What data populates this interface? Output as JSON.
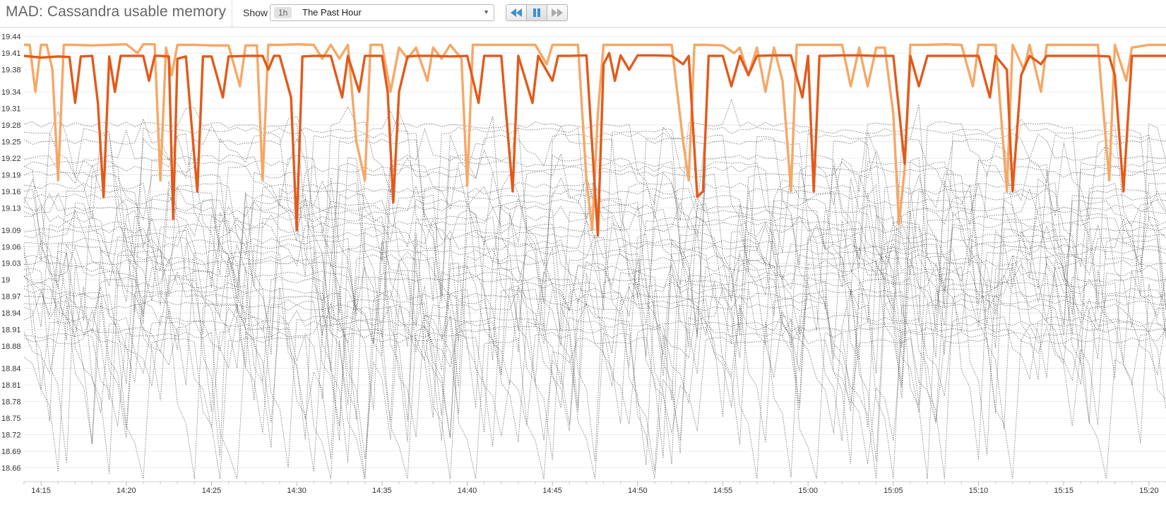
{
  "header": {
    "title": "MAD: Cassandra usable memory",
    "show_label": "Show",
    "time_badge": "1h",
    "time_range": "The Past Hour"
  },
  "controls": {
    "rewind_icon": "rewind-icon",
    "pause_icon": "pause-icon",
    "fast_forward_icon": "fast-forward-icon",
    "accent_color": "#3a8fd0"
  },
  "chart_data": {
    "type": "line",
    "title": "",
    "xlabel": "",
    "ylabel": "",
    "ylim": [
      18.635,
      19.455
    ],
    "y_ticks": [
      "19.44",
      "19.41",
      "19.38",
      "19.34",
      "19.31",
      "19.28",
      "19.25",
      "19.22",
      "19.19",
      "19.16",
      "19.13",
      "19.09",
      "19.06",
      "19.03",
      "19",
      "18.97",
      "18.94",
      "18.91",
      "18.88",
      "18.84",
      "18.81",
      "18.78",
      "18.75",
      "18.72",
      "18.69",
      "18.66"
    ],
    "x_ticks": [
      "14:15",
      "14:20",
      "14:25",
      "14:30",
      "14:35",
      "14:40",
      "14:45",
      "14:50",
      "14:55",
      "15:00",
      "15:05",
      "15:10",
      "15:15",
      "15:20"
    ],
    "x_range": [
      "14:14",
      "15:21"
    ],
    "grid": "horizontal",
    "legend": "none",
    "highlighted_series": [
      {
        "color": "#e35a1a",
        "stroke": "solid",
        "points": [
          [
            "14:14",
            19.405
          ],
          [
            "14:15",
            19.402
          ],
          [
            "14:16",
            19.404
          ],
          [
            "14:16:40",
            19.403
          ],
          [
            "14:17",
            19.32
          ],
          [
            "14:17:20",
            19.404
          ],
          [
            "14:18",
            19.405
          ],
          [
            "14:18:20",
            19.32
          ],
          [
            "14:18:40",
            19.15
          ],
          [
            "14:19",
            19.404
          ],
          [
            "14:19:20",
            19.34
          ],
          [
            "14:19:40",
            19.405
          ],
          [
            "14:20",
            19.405
          ],
          [
            "14:21",
            19.405
          ],
          [
            "14:21:20",
            19.36
          ],
          [
            "14:21:40",
            19.405
          ],
          [
            "14:22",
            19.405
          ],
          [
            "14:22:30",
            19.404
          ],
          [
            "14:22:45",
            19.11
          ],
          [
            "14:23",
            19.4
          ],
          [
            "14:23:30",
            19.404
          ],
          [
            "14:23:50",
            19.28
          ],
          [
            "14:24:10",
            19.16
          ],
          [
            "14:24:30",
            19.404
          ],
          [
            "14:25",
            19.404
          ],
          [
            "14:25:40",
            19.33
          ],
          [
            "14:26",
            19.404
          ],
          [
            "14:27",
            19.405
          ],
          [
            "14:28",
            19.405
          ],
          [
            "14:28:20",
            19.38
          ],
          [
            "14:28:40",
            19.405
          ],
          [
            "14:29",
            19.405
          ],
          [
            "14:29:40",
            19.33
          ],
          [
            "14:30",
            19.09
          ],
          [
            "14:30:20",
            19.404
          ],
          [
            "14:31",
            19.405
          ],
          [
            "14:32",
            19.405
          ],
          [
            "14:32:40",
            19.33
          ],
          [
            "14:33",
            19.405
          ],
          [
            "14:33:40",
            19.34
          ],
          [
            "14:34",
            19.405
          ],
          [
            "14:35",
            19.405
          ],
          [
            "14:35:20",
            19.34
          ],
          [
            "14:35:40",
            19.14
          ],
          [
            "14:36",
            19.34
          ],
          [
            "14:36:30",
            19.404
          ],
          [
            "14:37",
            19.405
          ],
          [
            "14:38",
            19.405
          ],
          [
            "14:39",
            19.404
          ],
          [
            "14:40",
            19.405
          ],
          [
            "14:40:40",
            19.32
          ],
          [
            "14:41",
            19.405
          ],
          [
            "14:42",
            19.405
          ],
          [
            "14:42:40",
            19.16
          ],
          [
            "14:43",
            19.405
          ],
          [
            "14:43:50",
            19.32
          ],
          [
            "14:44:10",
            19.405
          ],
          [
            "14:45",
            19.36
          ],
          [
            "14:45:20",
            19.405
          ],
          [
            "14:46",
            19.405
          ],
          [
            "14:47",
            19.406
          ],
          [
            "14:47:40",
            19.08
          ],
          [
            "14:48",
            19.39
          ],
          [
            "14:48:20",
            19.41
          ],
          [
            "14:48:40",
            19.36
          ],
          [
            "14:49",
            19.406
          ],
          [
            "14:49:30",
            19.38
          ],
          [
            "14:50",
            19.406
          ],
          [
            "14:51",
            19.406
          ],
          [
            "14:52",
            19.405
          ],
          [
            "14:52:40",
            19.39
          ],
          [
            "14:53",
            19.405
          ],
          [
            "14:53:30",
            19.15
          ],
          [
            "14:53:50",
            19.16
          ],
          [
            "14:54:10",
            19.405
          ],
          [
            "14:55",
            19.405
          ],
          [
            "14:55:30",
            19.35
          ],
          [
            "14:56",
            19.405
          ],
          [
            "14:56:30",
            19.37
          ],
          [
            "14:57",
            19.405
          ],
          [
            "14:58",
            19.406
          ],
          [
            "14:59",
            19.406
          ],
          [
            "14:59:40",
            19.33
          ],
          [
            "15:00",
            19.405
          ],
          [
            "15:00:20",
            19.16
          ],
          [
            "15:00:40",
            19.405
          ],
          [
            "15:01",
            19.405
          ],
          [
            "15:02",
            19.406
          ],
          [
            "15:03",
            19.406
          ],
          [
            "15:04",
            19.405
          ],
          [
            "15:05",
            19.405
          ],
          [
            "15:05:40",
            19.21
          ],
          [
            "15:06",
            19.405
          ],
          [
            "15:06:30",
            19.35
          ],
          [
            "15:07",
            19.405
          ],
          [
            "15:08",
            19.405
          ],
          [
            "15:09",
            19.405
          ],
          [
            "15:10",
            19.405
          ],
          [
            "15:10:40",
            19.33
          ],
          [
            "15:11",
            19.405
          ],
          [
            "15:11:40",
            19.38
          ],
          [
            "15:12",
            19.16
          ],
          [
            "15:12:30",
            19.37
          ],
          [
            "15:13",
            19.405
          ],
          [
            "15:13:40",
            19.39
          ],
          [
            "15:14",
            19.405
          ],
          [
            "15:15",
            19.405
          ],
          [
            "15:16",
            19.405
          ],
          [
            "15:17",
            19.405
          ],
          [
            "15:17:40",
            19.404
          ],
          [
            "15:18",
            19.37
          ],
          [
            "15:18:30",
            19.16
          ],
          [
            "15:19",
            19.405
          ],
          [
            "15:20",
            19.405
          ],
          [
            "15:21",
            19.405
          ]
        ]
      },
      {
        "color": "#f5a866",
        "stroke": "solid",
        "points": [
          [
            "14:14",
            19.425
          ],
          [
            "14:14:20",
            19.425
          ],
          [
            "14:14:40",
            19.34
          ],
          [
            "14:15",
            19.425
          ],
          [
            "14:15:20",
            19.425
          ],
          [
            "14:15:40",
            19.38
          ],
          [
            "14:16",
            19.18
          ],
          [
            "14:16:20",
            19.425
          ],
          [
            "14:17",
            19.425
          ],
          [
            "14:18",
            19.424
          ],
          [
            "14:19",
            19.425
          ],
          [
            "14:20",
            19.426
          ],
          [
            "14:20:40",
            19.41
          ],
          [
            "14:21",
            19.426
          ],
          [
            "14:21:40",
            19.426
          ],
          [
            "14:22",
            19.18
          ],
          [
            "14:22:20",
            19.42
          ],
          [
            "14:22:40",
            19.37
          ],
          [
            "14:23",
            19.425
          ],
          [
            "14:24",
            19.425
          ],
          [
            "14:25",
            19.424
          ],
          [
            "14:26",
            19.424
          ],
          [
            "14:26:40",
            19.35
          ],
          [
            "14:27",
            19.424
          ],
          [
            "14:27:40",
            19.424
          ],
          [
            "14:28",
            19.18
          ],
          [
            "14:28:20",
            19.425
          ],
          [
            "14:29",
            19.425
          ],
          [
            "14:30",
            19.426
          ],
          [
            "14:31",
            19.425
          ],
          [
            "14:31:30",
            19.4
          ],
          [
            "14:32",
            19.425
          ],
          [
            "14:32:30",
            19.4
          ],
          [
            "14:33",
            19.425
          ],
          [
            "14:33:30",
            19.25
          ],
          [
            "14:34",
            19.18
          ],
          [
            "14:34:20",
            19.425
          ],
          [
            "14:35",
            19.425
          ],
          [
            "14:35:30",
            19.34
          ],
          [
            "14:36",
            19.42
          ],
          [
            "14:36:30",
            19.4
          ],
          [
            "14:37",
            19.42
          ],
          [
            "14:37:40",
            19.36
          ],
          [
            "14:38",
            19.42
          ],
          [
            "14:38:30",
            19.4
          ],
          [
            "14:39",
            19.425
          ],
          [
            "14:39:40",
            19.4
          ],
          [
            "14:40",
            19.17
          ],
          [
            "14:40:20",
            19.425
          ],
          [
            "14:41",
            19.425
          ],
          [
            "14:42",
            19.425
          ],
          [
            "14:43",
            19.425
          ],
          [
            "14:44",
            19.425
          ],
          [
            "14:44:40",
            19.39
          ],
          [
            "14:45",
            19.425
          ],
          [
            "14:46",
            19.425
          ],
          [
            "14:46:30",
            19.425
          ],
          [
            "14:47",
            19.18
          ],
          [
            "14:47:20",
            19.09
          ],
          [
            "14:47:40",
            19.3
          ],
          [
            "14:48",
            19.425
          ],
          [
            "14:49",
            19.425
          ],
          [
            "14:50",
            19.425
          ],
          [
            "14:51",
            19.425
          ],
          [
            "14:52",
            19.425
          ],
          [
            "14:52:40",
            19.25
          ],
          [
            "14:53",
            19.18
          ],
          [
            "14:53:20",
            19.425
          ],
          [
            "14:54",
            19.425
          ],
          [
            "14:55",
            19.424
          ],
          [
            "14:55:40",
            19.41
          ],
          [
            "14:56",
            19.42
          ],
          [
            "14:56:30",
            19.37
          ],
          [
            "14:57",
            19.42
          ],
          [
            "14:57:30",
            19.34
          ],
          [
            "14:58",
            19.42
          ],
          [
            "14:58:30",
            19.36
          ],
          [
            "14:59",
            19.16
          ],
          [
            "14:59:20",
            19.425
          ],
          [
            "15:00",
            19.425
          ],
          [
            "15:01",
            19.425
          ],
          [
            "15:02",
            19.425
          ],
          [
            "15:02:30",
            19.35
          ],
          [
            "15:03",
            19.42
          ],
          [
            "15:03:30",
            19.35
          ],
          [
            "15:04",
            19.42
          ],
          [
            "15:04:30",
            19.42
          ],
          [
            "15:05",
            19.3
          ],
          [
            "15:05:20",
            19.1
          ],
          [
            "15:05:40",
            19.2
          ],
          [
            "15:06",
            19.425
          ],
          [
            "15:07",
            19.425
          ],
          [
            "15:08",
            19.426
          ],
          [
            "15:09",
            19.425
          ],
          [
            "15:09:40",
            19.35
          ],
          [
            "15:10",
            19.425
          ],
          [
            "15:11",
            19.425
          ],
          [
            "15:11:40",
            19.16
          ],
          [
            "15:12",
            19.425
          ],
          [
            "15:12:40",
            19.38
          ],
          [
            "15:13",
            19.425
          ],
          [
            "15:13:40",
            19.34
          ],
          [
            "15:14",
            19.425
          ],
          [
            "15:15",
            19.425
          ],
          [
            "15:16",
            19.425
          ],
          [
            "15:17",
            19.425
          ],
          [
            "15:17:40",
            19.18
          ],
          [
            "15:18",
            19.425
          ],
          [
            "15:18:40",
            19.36
          ],
          [
            "15:19",
            19.42
          ],
          [
            "15:20",
            19.425
          ],
          [
            "15:21",
            19.425
          ]
        ]
      }
    ],
    "background_series": {
      "color": "#555555",
      "stroke": "dotted",
      "levels": [
        19.28,
        19.27,
        19.26,
        19.25,
        19.22,
        19.21,
        19.2,
        19.19,
        19.17,
        19.16,
        19.15,
        19.14,
        19.13,
        19.12,
        19.11,
        19.1,
        19.09,
        19.08,
        19.07,
        19.06,
        19.05,
        19.04,
        19.03,
        19.02,
        19.01,
        19.0,
        18.99,
        18.98,
        18.97,
        18.96,
        18.95,
        18.93,
        18.92,
        18.91,
        18.9,
        18.89
      ]
    }
  }
}
